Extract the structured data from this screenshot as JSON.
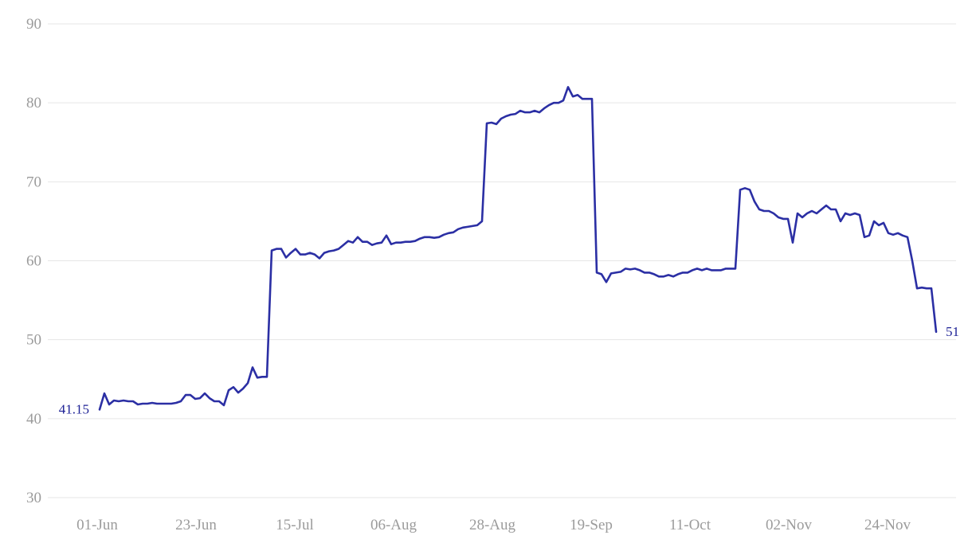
{
  "chart_data": {
    "type": "line",
    "title": "",
    "series_name": "price",
    "grid": "horizontal",
    "legend": "none",
    "ylim": [
      30,
      90
    ],
    "y_ticks": [
      30,
      40,
      50,
      60,
      70,
      80,
      90
    ],
    "x_tick_labels": [
      "01-Jun",
      "23-Jun",
      "15-Jul",
      "06-Aug",
      "28-Aug",
      "19-Sep",
      "11-Oct",
      "02-Nov",
      "24-Nov"
    ],
    "first_point_label": "41.15",
    "last_point_label": "51",
    "first_point_value": 41.15,
    "last_point_value": 51,
    "line_color": "#2b2fa4",
    "axis_label_color": "#9b9b9b",
    "gridline_color": "#e6e6e6",
    "annotation_color": "#1e2296",
    "values": [
      41.15,
      43.2,
      41.8,
      42.3,
      42.2,
      42.3,
      42.2,
      42.2,
      41.8,
      41.9,
      41.9,
      42.0,
      41.9,
      41.9,
      41.9,
      41.9,
      42.0,
      42.2,
      43.0,
      43.0,
      42.5,
      42.6,
      43.2,
      42.6,
      42.2,
      42.2,
      41.7,
      43.6,
      44.0,
      43.3,
      43.8,
      44.5,
      46.5,
      45.2,
      45.3,
      45.3,
      61.3,
      61.5,
      61.5,
      60.4,
      61.0,
      61.5,
      60.8,
      60.8,
      61.0,
      60.8,
      60.3,
      61.0,
      61.2,
      61.3,
      61.5,
      62.0,
      62.5,
      62.3,
      63.0,
      62.4,
      62.4,
      62.0,
      62.2,
      62.3,
      63.2,
      62.1,
      62.3,
      62.3,
      62.4,
      62.4,
      62.5,
      62.8,
      63.0,
      63.0,
      62.9,
      63.0,
      63.3,
      63.5,
      63.6,
      64.0,
      64.2,
      64.3,
      64.4,
      64.5,
      65.0,
      77.4,
      77.5,
      77.3,
      78.0,
      78.3,
      78.5,
      78.6,
      79.0,
      78.8,
      78.8,
      79.0,
      78.8,
      79.3,
      79.7,
      80.0,
      80.0,
      80.3,
      82.0,
      80.8,
      81.0,
      80.5,
      80.5,
      80.5,
      58.5,
      58.3,
      57.3,
      58.4,
      58.5,
      58.6,
      59.0,
      58.9,
      59.0,
      58.8,
      58.5,
      58.5,
      58.3,
      58.0,
      58.0,
      58.2,
      58.0,
      58.3,
      58.5,
      58.5,
      58.8,
      59.0,
      58.8,
      59.0,
      58.8,
      58.8,
      58.8,
      59.0,
      59.0,
      59.0,
      69.0,
      69.2,
      69.0,
      67.5,
      66.5,
      66.3,
      66.3,
      66.0,
      65.5,
      65.3,
      65.3,
      62.3,
      66.0,
      65.5,
      66.0,
      66.3,
      66.0,
      66.5,
      67.0,
      66.5,
      66.5,
      65.0,
      66.0,
      65.8,
      66.0,
      65.8,
      63.0,
      63.2,
      65.0,
      64.5,
      64.8,
      63.5,
      63.3,
      63.5,
      63.2,
      63.0,
      60.0,
      56.5,
      56.6,
      56.5,
      56.5,
      51.0
    ]
  }
}
